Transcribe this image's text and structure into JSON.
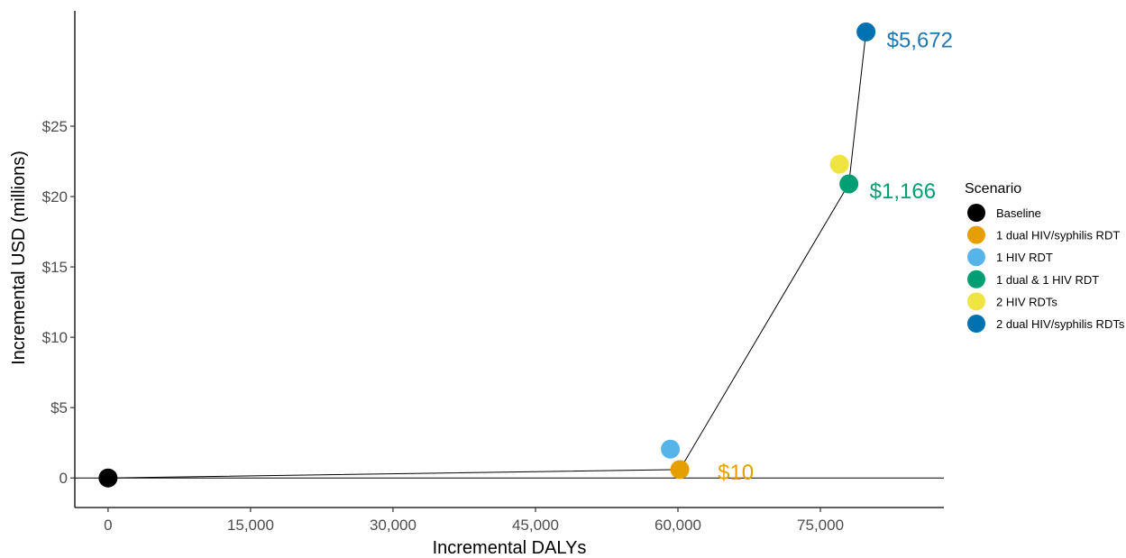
{
  "chart_data": {
    "type": "scatter",
    "xlabel": "Incremental DALYs",
    "ylabel": "Incremental USD (millions)",
    "xlim": [
      -3500,
      88000
    ],
    "ylim": [
      -2.1,
      33.2
    ],
    "x_ticks": [
      0,
      15000,
      30000,
      45000,
      60000,
      75000
    ],
    "x_tick_labels": [
      "0",
      "15,000",
      "30,000",
      "45,000",
      "60,000",
      "75,000"
    ],
    "y_ticks": [
      0,
      5,
      10,
      15,
      20,
      25
    ],
    "y_tick_labels": [
      "0",
      "$5",
      "$10",
      "$15",
      "$20",
      "$25"
    ],
    "horizontal_reference_line_y": 0,
    "grid": false,
    "legend": {
      "title": "Scenario",
      "placement": "right"
    },
    "series": [
      {
        "name": "Baseline",
        "color": "#000000",
        "x": 0,
        "y": 0
      },
      {
        "name": "1 dual HIV/syphilis RDT",
        "color": "#E69F00",
        "x": 60200,
        "y": 0.6
      },
      {
        "name": "1 HIV RDT",
        "color": "#56B4E9",
        "x": 59200,
        "y": 2.05
      },
      {
        "name": "1 dual & 1 HIV RDT",
        "color": "#009E73",
        "x": 78000,
        "y": 20.9
      },
      {
        "name": "2 HIV RDTs",
        "color": "#F0E442",
        "x": 77000,
        "y": 22.3
      },
      {
        "name": "2 dual HIV/syphilis RDTs",
        "color": "#0072B2",
        "x": 79800,
        "y": 31.7
      }
    ],
    "frontier_path": [
      "Baseline",
      "1 dual HIV/syphilis RDT",
      "1 dual & 1 HIV RDT",
      "2 dual HIV/syphilis RDTs"
    ],
    "annotations": [
      {
        "text": "$10",
        "series": "1 dual HIV/syphilis RDT",
        "color": "#E69F00"
      },
      {
        "text": "$1,166",
        "series": "1 dual & 1 HIV RDT",
        "color": "#009E73"
      },
      {
        "text": "$5,672",
        "series": "2 dual HIV/syphilis RDTs",
        "color": "#1F77B4"
      }
    ]
  }
}
